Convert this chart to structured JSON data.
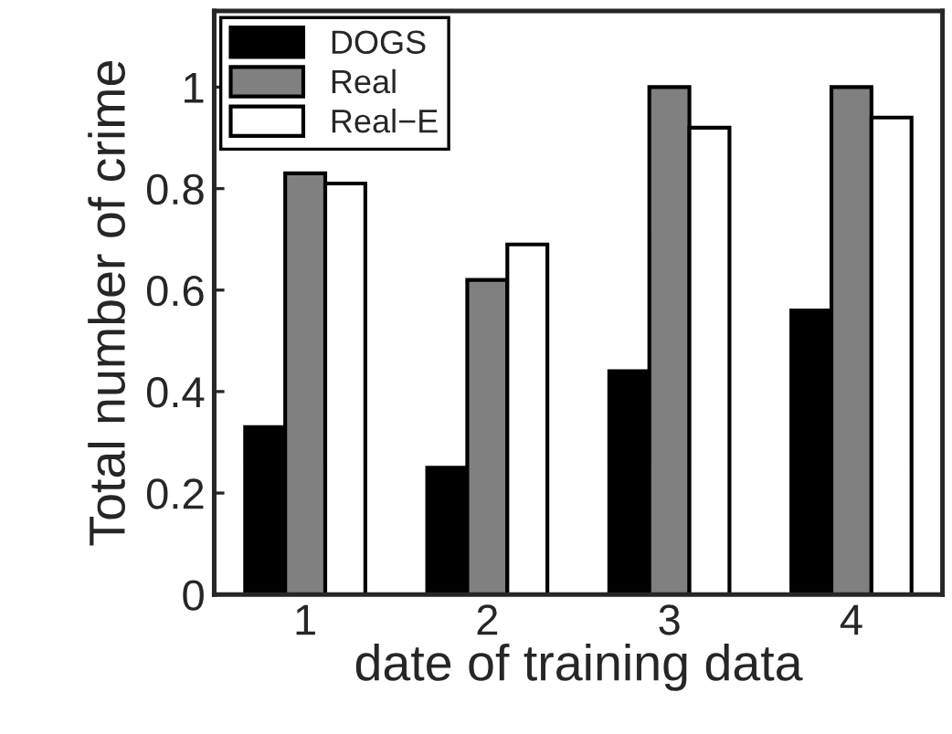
{
  "chart_data": {
    "type": "bar",
    "xlabel": "date of training data",
    "ylabel": "Total number of crime",
    "categories": [
      "1",
      "2",
      "3",
      "4"
    ],
    "series": [
      {
        "name": "DOGS",
        "color": "#000000",
        "values": [
          0.33,
          0.25,
          0.44,
          0.56
        ]
      },
      {
        "name": "Real",
        "color": "#808080",
        "values": [
          0.83,
          0.62,
          1.0,
          1.0
        ]
      },
      {
        "name": "Real−E",
        "color": "#ffffff",
        "values": [
          0.81,
          0.69,
          0.92,
          0.94
        ]
      }
    ],
    "ylim": [
      0,
      1.15
    ],
    "yticks": [
      0,
      0.2,
      0.4,
      0.6,
      0.8,
      1
    ],
    "grid": false,
    "legend": "top left"
  }
}
